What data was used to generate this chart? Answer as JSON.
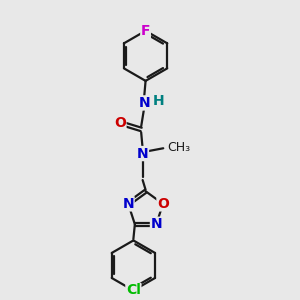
{
  "bg_color": "#e8e8e8",
  "bond_color": "#1a1a1a",
  "N_color": "#0000cc",
  "O_color": "#cc0000",
  "F_color": "#cc00cc",
  "Cl_color": "#00bb00",
  "H_color": "#008080",
  "font_size": 10,
  "bond_width": 1.6,
  "figsize": [
    3.0,
    3.0
  ],
  "dpi": 100,
  "xlim": [
    0,
    10
  ],
  "ylim": [
    0,
    10
  ]
}
